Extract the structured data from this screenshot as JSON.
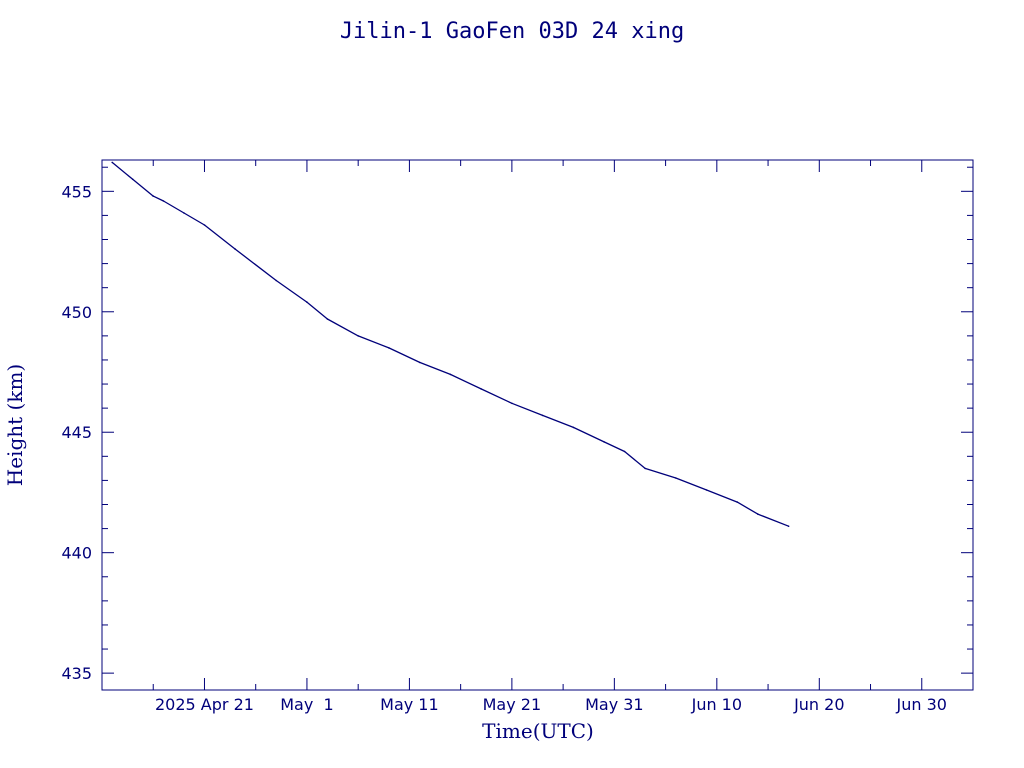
{
  "chart_data": {
    "type": "line",
    "title": "Jilin-1 GaoFen 03D 24 xing",
    "xlabel": "Time(UTC)",
    "ylabel": "Height (km)",
    "x_range": [
      "2025-04-11",
      "2025-07-05"
    ],
    "ylim": [
      434.3,
      456.3
    ],
    "yticks": [
      435,
      440,
      445,
      450,
      455
    ],
    "xticks": [
      {
        "date": "2025-04-21",
        "label": "2025 Apr 21"
      },
      {
        "date": "2025-05-01",
        "label": "May  1"
      },
      {
        "date": "2025-05-11",
        "label": "May 11"
      },
      {
        "date": "2025-05-21",
        "label": "May 21"
      },
      {
        "date": "2025-05-31",
        "label": "May 31"
      },
      {
        "date": "2025-06-10",
        "label": "Jun 10"
      },
      {
        "date": "2025-06-20",
        "label": "Jun 20"
      },
      {
        "date": "2025-06-30",
        "label": "Jun 30"
      }
    ],
    "grid": false,
    "color": "#00007a",
    "series": [
      {
        "x": [
          "2025-04-12",
          "2025-04-14",
          "2025-04-16",
          "2025-04-17",
          "2025-04-19",
          "2025-04-21",
          "2025-04-24",
          "2025-04-28",
          "2025-05-01",
          "2025-05-03",
          "2025-05-06",
          "2025-05-09",
          "2025-05-12",
          "2025-05-15",
          "2025-05-18",
          "2025-05-21",
          "2025-05-24",
          "2025-05-27",
          "2025-05-30",
          "2025-06-01",
          "2025-06-03",
          "2025-06-06",
          "2025-06-09",
          "2025-06-12",
          "2025-06-14",
          "2025-06-17"
        ],
        "y": [
          456.2,
          455.5,
          454.8,
          454.6,
          454.1,
          453.6,
          452.6,
          451.3,
          450.4,
          449.7,
          449.0,
          448.5,
          447.9,
          447.4,
          446.8,
          446.2,
          445.7,
          445.2,
          444.6,
          444.2,
          443.5,
          443.1,
          442.6,
          442.1,
          441.6,
          441.1
        ]
      }
    ]
  }
}
